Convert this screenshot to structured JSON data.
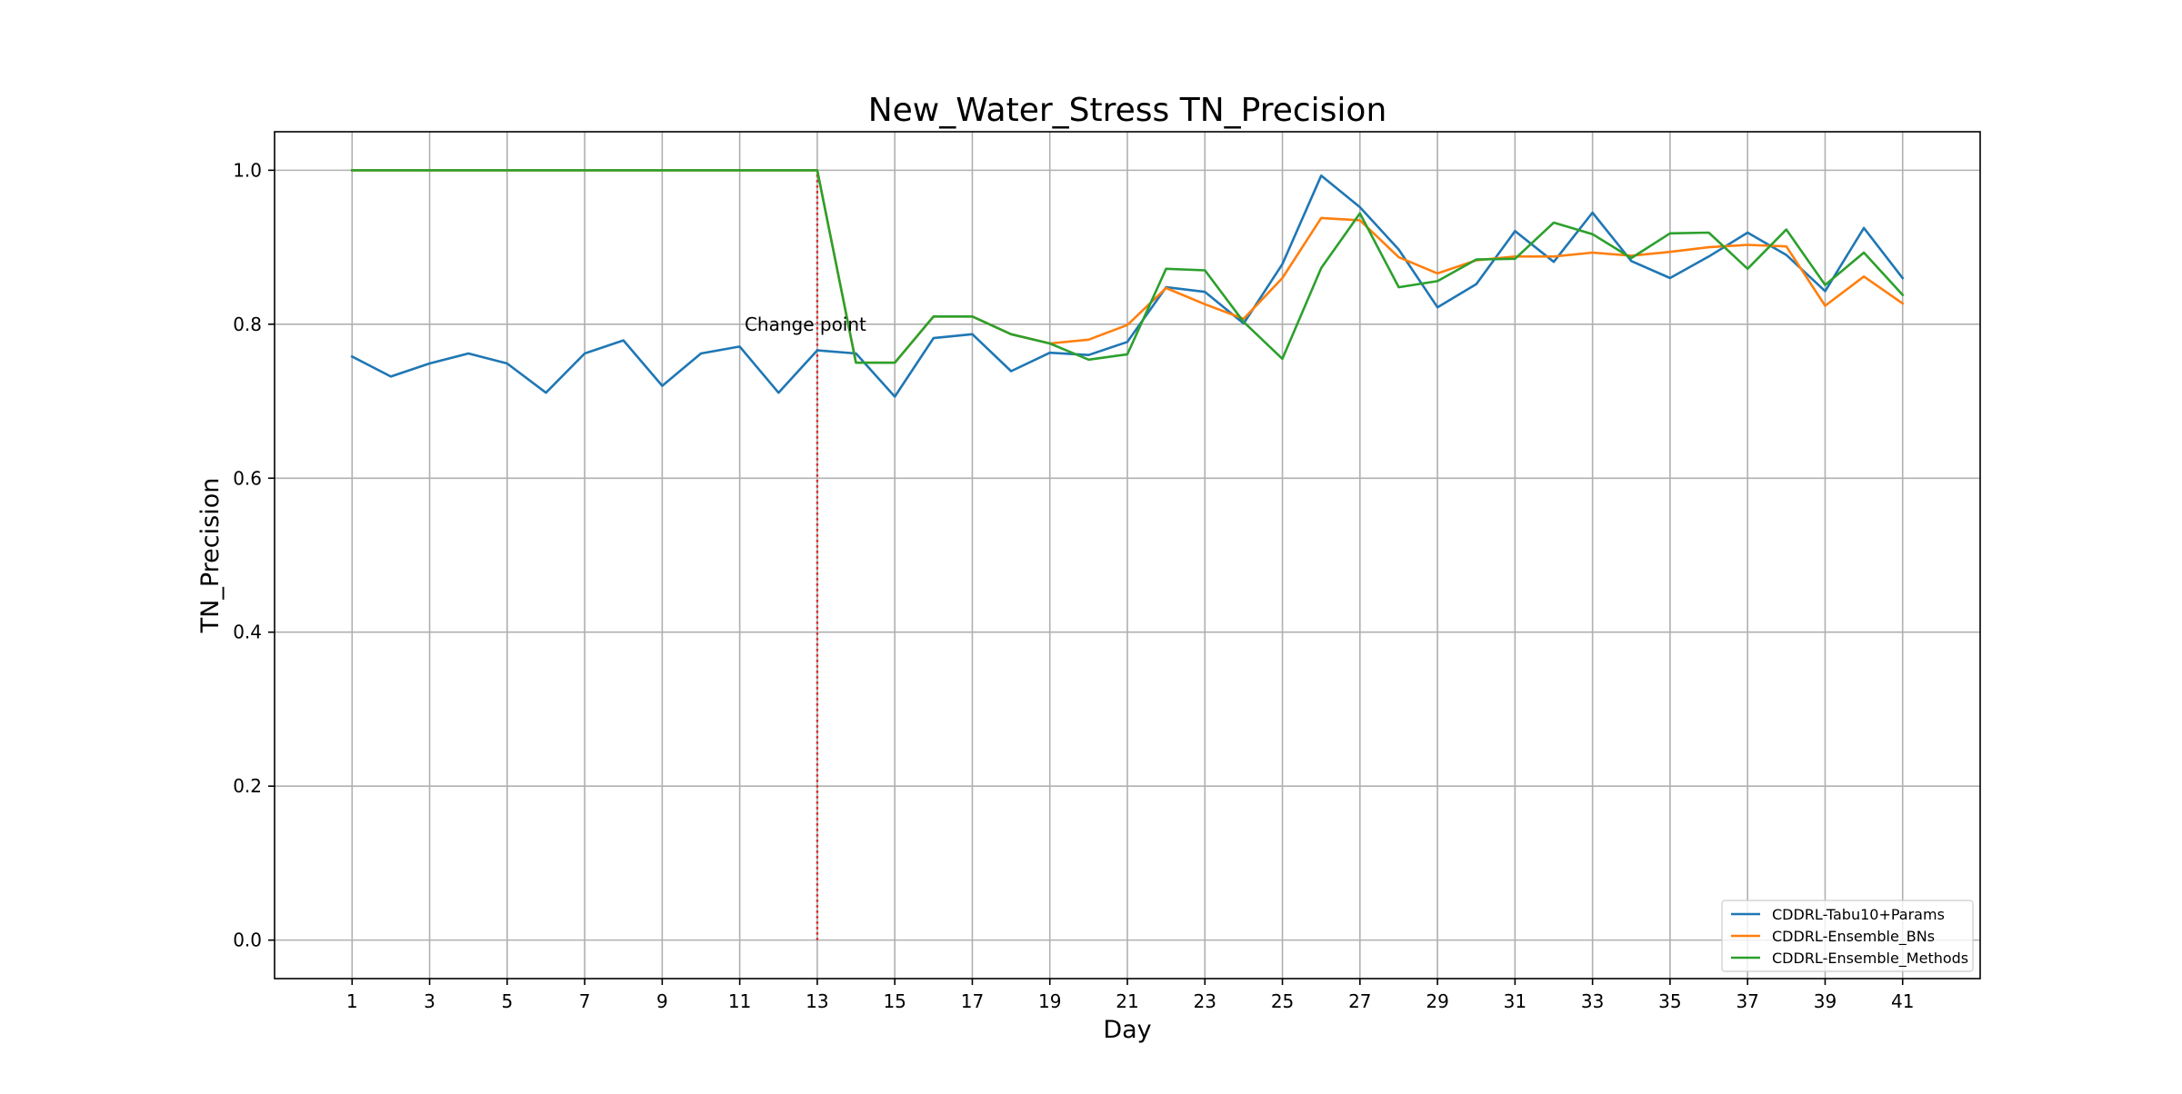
{
  "chart_data": {
    "type": "line",
    "title": "New_Water_Stress TN_Precision",
    "xlabel": "Day",
    "ylabel": "TN_Precision",
    "xlim": [
      -1,
      43
    ],
    "ylim": [
      -0.05,
      1.05
    ],
    "xticks": [
      1,
      3,
      5,
      7,
      9,
      11,
      13,
      15,
      17,
      19,
      21,
      23,
      25,
      27,
      29,
      31,
      33,
      35,
      37,
      39,
      41
    ],
    "yticks": [
      0.0,
      0.2,
      0.4,
      0.6,
      0.8,
      1.0
    ],
    "ytick_labels": [
      "0.0",
      "0.2",
      "0.4",
      "0.6",
      "0.8",
      "1.0"
    ],
    "grid": true,
    "legend_position": "lower-right",
    "x": [
      1,
      2,
      3,
      4,
      5,
      6,
      7,
      8,
      9,
      10,
      11,
      12,
      13,
      14,
      15,
      16,
      17,
      18,
      19,
      20,
      21,
      22,
      23,
      24,
      25,
      26,
      27,
      28,
      29,
      30,
      31,
      32,
      33,
      34,
      35,
      36,
      37,
      38,
      39,
      40,
      41
    ],
    "series": [
      {
        "name": "CDDRL-Tabu10+Params",
        "color": "#1f77b4",
        "values": [
          0.758,
          0.732,
          0.749,
          0.762,
          0.749,
          0.711,
          0.762,
          0.779,
          0.72,
          0.762,
          0.771,
          0.711,
          0.766,
          0.762,
          0.706,
          0.782,
          0.787,
          0.739,
          0.763,
          0.76,
          0.777,
          0.848,
          0.842,
          0.801,
          0.878,
          0.993,
          0.952,
          0.897,
          0.822,
          0.852,
          0.921,
          0.881,
          0.945,
          0.882,
          0.86,
          0.888,
          0.919,
          0.89,
          0.843,
          0.925,
          0.86
        ]
      },
      {
        "name": "CDDRL-Ensemble_BNs",
        "color": "#ff7f0e",
        "values": [
          1.0,
          1.0,
          1.0,
          1.0,
          1.0,
          1.0,
          1.0,
          1.0,
          1.0,
          1.0,
          1.0,
          1.0,
          1.0,
          0.75,
          0.75,
          0.81,
          0.81,
          0.787,
          0.775,
          0.78,
          0.799,
          0.847,
          0.826,
          0.807,
          0.86,
          0.938,
          0.935,
          0.887,
          0.866,
          0.883,
          0.888,
          0.888,
          0.893,
          0.889,
          0.894,
          0.9,
          0.903,
          0.901,
          0.824,
          0.862,
          0.827
        ]
      },
      {
        "name": "CDDRL-Ensemble_Methods",
        "color": "#2ca02c",
        "values": [
          1.0,
          1.0,
          1.0,
          1.0,
          1.0,
          1.0,
          1.0,
          1.0,
          1.0,
          1.0,
          1.0,
          1.0,
          1.0,
          0.75,
          0.75,
          0.81,
          0.81,
          0.787,
          0.775,
          0.754,
          0.761,
          0.872,
          0.87,
          0.803,
          0.755,
          0.873,
          0.944,
          0.848,
          0.856,
          0.884,
          0.885,
          0.932,
          0.917,
          0.886,
          0.918,
          0.919,
          0.872,
          0.923,
          0.851,
          0.893,
          0.838
        ]
      }
    ],
    "annotations": [
      {
        "type": "vline",
        "x": 13,
        "y_from": 0.0,
        "y_to": 1.0,
        "color": "#d62728",
        "style": "dotted"
      },
      {
        "type": "text",
        "text": "Change point",
        "x": 13,
        "y": 0.8
      }
    ]
  }
}
